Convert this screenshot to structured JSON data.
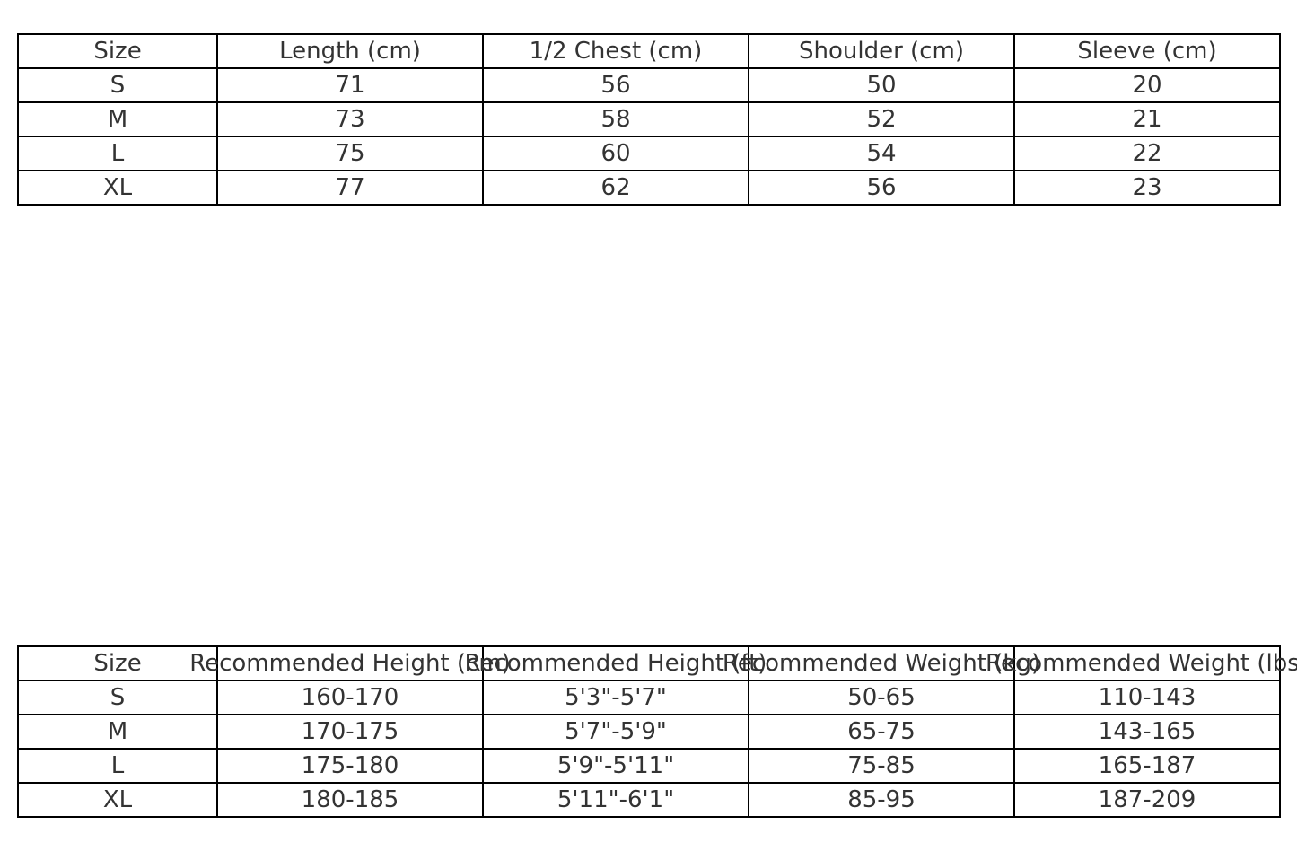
{
  "measurements_table": {
    "headers": [
      "Size",
      "Length (cm)",
      "1/2 Chest (cm)",
      "Shoulder (cm)",
      "Sleeve (cm)"
    ],
    "rows": [
      [
        "S",
        "71",
        "56",
        "50",
        "20"
      ],
      [
        "M",
        "73",
        "58",
        "52",
        "21"
      ],
      [
        "L",
        "75",
        "60",
        "54",
        "22"
      ],
      [
        "XL",
        "77",
        "62",
        "56",
        "23"
      ]
    ]
  },
  "recommendation_table": {
    "headers": [
      "Size",
      "Recommended Height (cm)",
      "Recommended Height (ft)",
      "Recommended Weight (kg)",
      "Recommended Weight (lbs)"
    ],
    "rows": [
      [
        "S",
        "160-170",
        "5'3\"-5'7\"",
        "50-65",
        "110-143"
      ],
      [
        "M",
        "170-175",
        "5'7\"-5'9\"",
        "65-75",
        "143-165"
      ],
      [
        "L",
        "175-180",
        "5'9\"-5'11\"",
        "75-85",
        "165-187"
      ],
      [
        "XL",
        "180-185",
        "5'11\"-6'1\"",
        "85-95",
        "187-209"
      ]
    ]
  }
}
